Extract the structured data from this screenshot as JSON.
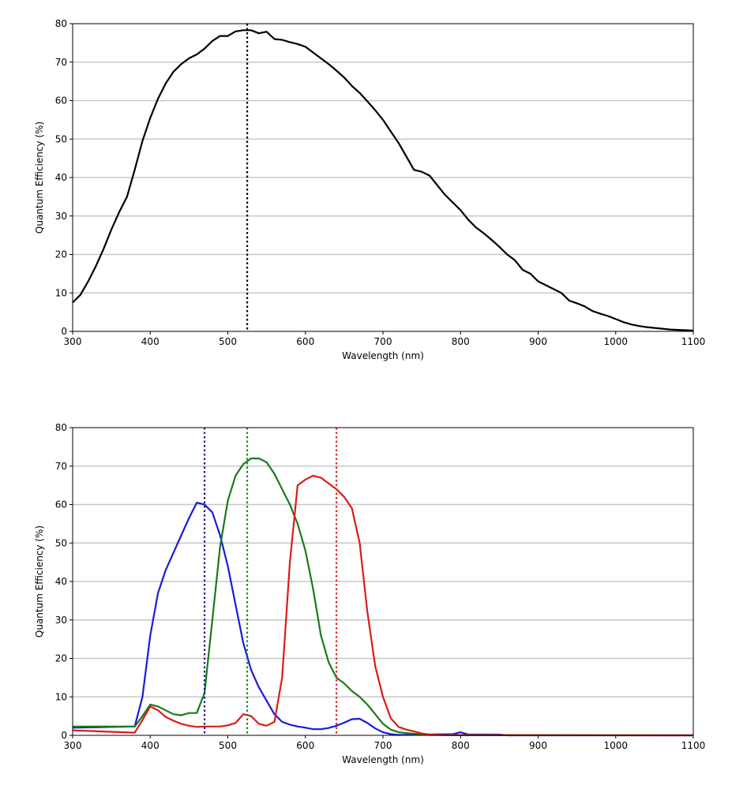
{
  "chart_data": [
    {
      "type": "line",
      "title": "",
      "xlabel": "Wavelength (nm)",
      "ylabel": "Quantum Efficiency (%)",
      "xlim": [
        300,
        1100
      ],
      "ylim": [
        0,
        80
      ],
      "xticks": [
        300,
        400,
        500,
        600,
        700,
        800,
        900,
        1000,
        1100
      ],
      "yticks": [
        0,
        10,
        20,
        30,
        40,
        50,
        60,
        70,
        80
      ],
      "grid": "horizontal",
      "series": [
        {
          "name": "mono",
          "color": "#000000",
          "x": [
            300,
            310,
            320,
            330,
            340,
            350,
            360,
            370,
            380,
            390,
            400,
            410,
            420,
            430,
            440,
            450,
            460,
            470,
            480,
            490,
            500,
            510,
            520,
            530,
            540,
            550,
            560,
            570,
            580,
            590,
            600,
            610,
            620,
            630,
            640,
            650,
            660,
            670,
            680,
            690,
            700,
            710,
            720,
            730,
            740,
            750,
            760,
            770,
            780,
            790,
            800,
            810,
            820,
            830,
            840,
            850,
            860,
            870,
            880,
            890,
            900,
            910,
            920,
            930,
            940,
            950,
            960,
            970,
            980,
            990,
            1000,
            1010,
            1020,
            1030,
            1040,
            1050,
            1060,
            1070,
            1080,
            1090,
            1100
          ],
          "y": [
            7.5,
            9.5,
            13,
            17,
            21.5,
            26.5,
            31,
            35,
            42,
            49.5,
            55.5,
            60.5,
            64.5,
            67.5,
            69.5,
            71,
            72,
            73.5,
            75.5,
            76.8,
            76.8,
            78,
            78.3,
            78.3,
            77.5,
            77.9,
            76,
            75.8,
            75.2,
            74.7,
            74,
            72.5,
            71,
            69.5,
            67.8,
            66,
            63.8,
            62,
            59.8,
            57.5,
            55,
            52,
            49,
            45.5,
            42,
            41.5,
            40.5,
            38,
            35.5,
            33.5,
            31.5,
            29,
            27,
            25.5,
            23.8,
            22,
            20,
            18.5,
            16,
            15,
            13,
            12,
            11,
            10,
            8,
            7.3,
            6.5,
            5.3,
            4.6,
            4,
            3.2,
            2.4,
            1.8,
            1.4,
            1.1,
            0.9,
            0.7,
            0.5,
            0.4,
            0.3,
            0.2
          ]
        }
      ],
      "vlines": [
        {
          "x": 525,
          "color": "#000000"
        }
      ]
    },
    {
      "type": "line",
      "title": "",
      "xlabel": "Wavelength (nm)",
      "ylabel": "Quantum Efficiency (%)",
      "xlim": [
        300,
        1100
      ],
      "ylim": [
        0,
        80
      ],
      "xticks": [
        300,
        400,
        500,
        600,
        700,
        800,
        900,
        1000,
        1100
      ],
      "yticks": [
        0,
        10,
        20,
        30,
        40,
        50,
        60,
        70,
        80
      ],
      "grid": "horizontal",
      "series": [
        {
          "name": "blue",
          "color": "#1a1adc",
          "x": [
            300,
            380,
            390,
            400,
            410,
            420,
            430,
            440,
            450,
            460,
            470,
            480,
            490,
            500,
            510,
            520,
            530,
            540,
            550,
            560,
            570,
            580,
            590,
            600,
            610,
            620,
            630,
            640,
            650,
            660,
            670,
            680,
            690,
            700,
            710,
            720,
            790,
            800,
            810,
            850,
            860,
            1100
          ],
          "y": [
            2,
            2.3,
            10,
            26,
            37,
            43,
            47.5,
            52,
            56.5,
            60.5,
            60,
            58,
            52,
            44,
            34,
            24,
            17,
            12.5,
            9,
            5.5,
            3.5,
            2.8,
            2.3,
            2,
            1.6,
            1.6,
            1.9,
            2.5,
            3.3,
            4.2,
            4.3,
            3.2,
            1.8,
            0.8,
            0.3,
            0.1,
            0.3,
            0.8,
            0.2,
            0.2,
            0,
            0
          ]
        },
        {
          "name": "green",
          "color": "#1a7a1a",
          "x": [
            300,
            380,
            390,
            400,
            410,
            420,
            430,
            440,
            450,
            460,
            470,
            480,
            490,
            500,
            510,
            520,
            530,
            540,
            550,
            560,
            570,
            580,
            590,
            600,
            610,
            620,
            630,
            640,
            650,
            660,
            670,
            680,
            690,
            700,
            710,
            720,
            740,
            760,
            1100
          ],
          "y": [
            2.3,
            2.3,
            5,
            8,
            7.5,
            6.5,
            5.5,
            5.2,
            5.8,
            5.8,
            11,
            30,
            49,
            61,
            67.5,
            70.5,
            72,
            72,
            71,
            68,
            64,
            60,
            55,
            48,
            38,
            26,
            19,
            15,
            13.5,
            11.5,
            10,
            8,
            5.5,
            3,
            1.5,
            0.8,
            0.4,
            0.1,
            0
          ]
        },
        {
          "name": "red",
          "color": "#dc1a1a",
          "x": [
            300,
            380,
            390,
            400,
            410,
            420,
            430,
            440,
            450,
            460,
            470,
            480,
            490,
            500,
            510,
            520,
            530,
            540,
            550,
            560,
            570,
            580,
            590,
            600,
            610,
            620,
            630,
            640,
            650,
            660,
            670,
            680,
            690,
            700,
            710,
            720,
            730,
            740,
            750,
            760,
            780,
            1100
          ],
          "y": [
            1.3,
            0.7,
            4,
            7.5,
            6.5,
            4.8,
            3.8,
            3,
            2.5,
            2.2,
            2.3,
            2.3,
            2.3,
            2.6,
            3.2,
            5.5,
            5,
            3,
            2.5,
            3.5,
            15,
            45,
            65,
            66.5,
            67.5,
            67,
            65.5,
            64,
            62,
            59,
            50,
            32,
            18,
            10,
            4.5,
            2.2,
            1.5,
            1,
            0.5,
            0.2,
            0.05,
            0
          ]
        }
      ],
      "vlines": [
        {
          "x": 470,
          "color": "#1a1a9a"
        },
        {
          "x": 525,
          "color": "#1a8a1a"
        },
        {
          "x": 640,
          "color": "#dc2a2a"
        }
      ]
    }
  ]
}
